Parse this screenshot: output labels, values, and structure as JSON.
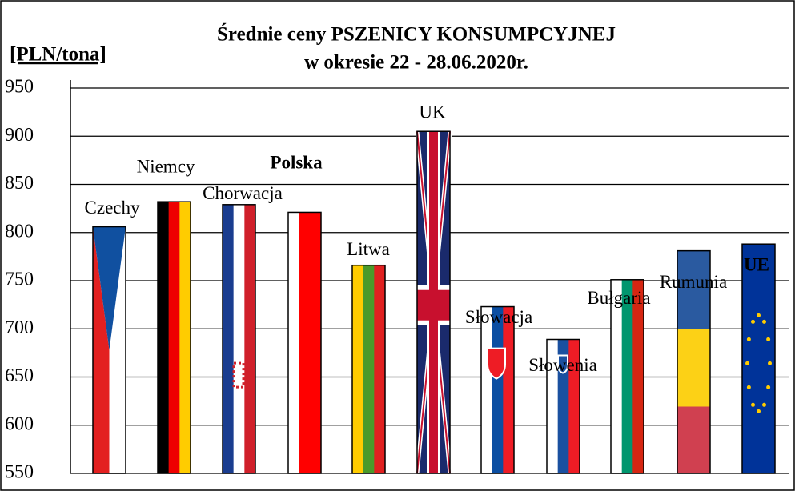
{
  "chart_data": {
    "type": "bar",
    "title": "Średnie ceny PSZENICY  KONSUMPCYJNEJ",
    "subtitle": "w okresie 22 - 28.06.2020r.",
    "y_label": "[PLN/tona]",
    "categories": [
      "Czechy",
      "Niemcy",
      "Chorwacja",
      "Polska",
      "Litwa",
      "UK",
      "Słowacja",
      "Słowenia",
      "Bułgaria",
      "Rumunia",
      "UE"
    ],
    "values": [
      806,
      832,
      829,
      821,
      766,
      905,
      723,
      689,
      751,
      781,
      788
    ],
    "ylim": [
      550,
      950
    ],
    "yticks": [
      550,
      600,
      650,
      700,
      750,
      800,
      850,
      900,
      950
    ],
    "grid": true
  }
}
